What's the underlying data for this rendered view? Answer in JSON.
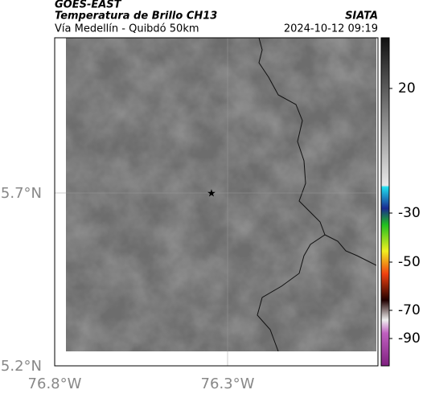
{
  "header": {
    "satellite": "GOES-EAST",
    "product": "Temperatura de Brillo CH13",
    "source": "SIATA",
    "route": "Vía Medellín - Quibdó 50km",
    "timestamp": "2024-10-12 09:19"
  },
  "axes": {
    "lat_labels": [
      "5.7°N",
      "5.2°N"
    ],
    "lon_labels": [
      "76.8°W",
      "76.3°W"
    ]
  },
  "colorbar": {
    "ticks": [
      20,
      -30,
      -50,
      -70,
      -90
    ]
  }
}
